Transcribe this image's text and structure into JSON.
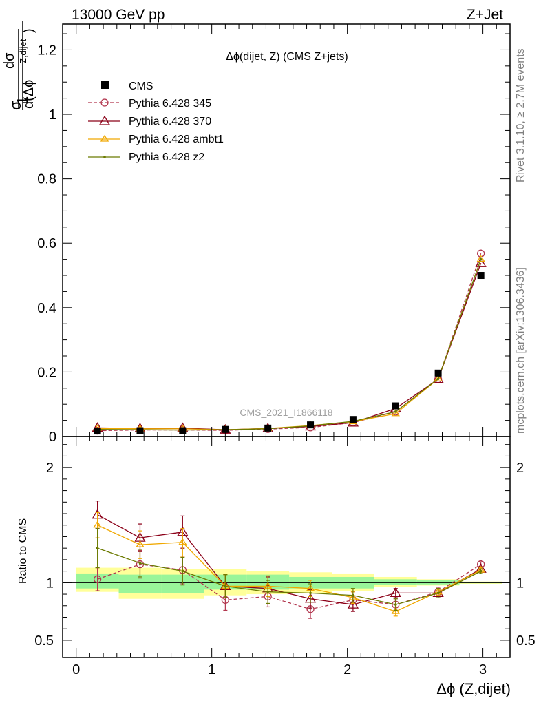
{
  "header": {
    "left": "13000 GeV pp",
    "right": "Z+Jet"
  },
  "side": {
    "rivet": "Rivet 3.1.10, ≥ 2.7M events",
    "mcplots": "mcplots.cern.ch [arXiv:1306.3436]"
  },
  "watermark": "CMS_2021_I1866118",
  "colors": {
    "cms": "#000000",
    "p345": "#b2364e",
    "p370": "#8b0018",
    "ambt1": "#f0a800",
    "z2": "#6b7a00",
    "band_inner": "#99f599",
    "band_outer": "#ffff99"
  },
  "chart_data": [
    {
      "type": "scatter",
      "title": "Δϕ(dijet, Z) (CMS Z+jets)",
      "xlabel": "Δϕ (Z,dijet)",
      "ylabel_main": "dσ",
      "ylabel_sub": "d(Δϕ",
      "ylabel_sup": "Z,dijet",
      "ylabel_close": ")",
      "ylabel_num": "1",
      "ylabel_den": "σ",
      "xlim": [
        -0.1,
        3.2
      ],
      "ylim": [
        0,
        1.28
      ],
      "yticks": [
        0,
        0.2,
        0.4,
        0.6,
        0.8,
        1,
        1.2
      ],
      "yticklabels": [
        "0",
        "0.2",
        "0.4",
        "0.6",
        "0.8",
        "1",
        "1.2"
      ],
      "legend_position": "top-left",
      "x": [
        0.157,
        0.471,
        0.785,
        1.1,
        1.414,
        1.728,
        2.042,
        2.356,
        2.67,
        2.985
      ],
      "series": [
        {
          "name": "CMS",
          "marker": "square",
          "color": "#000000",
          "values": [
            0.017,
            0.018,
            0.018,
            0.022,
            0.026,
            0.036,
            0.053,
            0.095,
            0.197,
            0.5
          ]
        },
        {
          "name": "Pythia 6.428 345",
          "marker": "circle",
          "color": "#b2364e",
          "dashed": true,
          "values": [
            0.018,
            0.02,
            0.02,
            0.019,
            0.023,
            0.028,
            0.043,
            0.077,
            0.178,
            0.568
          ]
        },
        {
          "name": "Pythia 6.428 370",
          "marker": "triangle",
          "color": "#8b0018",
          "values": [
            0.027,
            0.025,
            0.026,
            0.021,
            0.025,
            0.031,
            0.043,
            0.087,
            0.178,
            0.538
          ]
        },
        {
          "name": "Pythia 6.428 ambt1",
          "marker": "triangle-small",
          "color": "#f0a800",
          "values": [
            0.025,
            0.024,
            0.024,
            0.021,
            0.025,
            0.034,
            0.046,
            0.071,
            0.179,
            0.55
          ]
        },
        {
          "name": "Pythia 6.428 z2",
          "marker": "dot",
          "color": "#6b7a00",
          "values": [
            0.022,
            0.021,
            0.02,
            0.021,
            0.024,
            0.033,
            0.047,
            0.077,
            0.179,
            0.55
          ]
        }
      ]
    },
    {
      "type": "line",
      "ylabel": "Ratio to CMS",
      "ylim": [
        0.35,
        2.27
      ],
      "yticks": [
        0.5,
        1,
        2
      ],
      "yticklabels": [
        "0.5",
        "1",
        "2"
      ],
      "xticks": [
        0,
        1,
        2,
        3
      ],
      "xticklabels": [
        "0",
        "1",
        "2",
        "3"
      ],
      "x": [
        0.157,
        0.471,
        0.785,
        1.1,
        1.414,
        1.728,
        2.042,
        2.356,
        2.67,
        2.985
      ],
      "x_edges": [
        0.0,
        0.314,
        0.628,
        0.942,
        1.257,
        1.571,
        1.885,
        2.199,
        2.513,
        2.827,
        3.142
      ],
      "band_inner": [
        [
          0.95,
          1.08
        ],
        [
          0.91,
          1.07
        ],
        [
          0.91,
          1.07
        ],
        [
          0.94,
          1.07
        ],
        [
          0.94,
          1.07
        ],
        [
          0.95,
          1.05
        ],
        [
          0.95,
          1.05
        ],
        [
          0.98,
          1.03
        ],
        [
          0.985,
          1.02
        ],
        [
          0.995,
          1.005
        ]
      ],
      "band_outer": [
        [
          0.92,
          1.13
        ],
        [
          0.86,
          1.13
        ],
        [
          0.86,
          1.12
        ],
        [
          0.89,
          1.12
        ],
        [
          0.9,
          1.1
        ],
        [
          0.91,
          1.09
        ],
        [
          0.93,
          1.08
        ],
        [
          0.96,
          1.05
        ],
        [
          0.975,
          1.03
        ],
        [
          0.99,
          1.01
        ]
      ],
      "series": [
        {
          "name": "Pythia 6.428 345",
          "marker": "circle",
          "color": "#b2364e",
          "dashed": true,
          "values": [
            1.03,
            1.16,
            1.11,
            0.85,
            0.88,
            0.77,
            0.85,
            0.81,
            0.92,
            1.16
          ],
          "errors": [
            0.1,
            0.12,
            0.12,
            0.09,
            0.09,
            0.08,
            0.07,
            0.05,
            0.04,
            0.02
          ]
        },
        {
          "name": "Pythia 6.428 370",
          "marker": "triangle",
          "color": "#8b0018",
          "values": [
            1.59,
            1.39,
            1.44,
            0.97,
            0.95,
            0.86,
            0.81,
            0.91,
            0.91,
            1.12
          ],
          "errors": [
            0.12,
            0.12,
            0.14,
            0.1,
            0.1,
            0.08,
            0.06,
            0.04,
            0.04,
            0.02
          ]
        },
        {
          "name": "Pythia 6.428 ambt1",
          "marker": "triangle-small",
          "color": "#f0a800",
          "values": [
            1.5,
            1.33,
            1.35,
            0.97,
            0.97,
            0.95,
            0.87,
            0.75,
            0.92,
            1.11
          ],
          "errors": [
            0.11,
            0.12,
            0.12,
            0.1,
            0.09,
            0.07,
            0.05,
            0.04,
            0.03,
            0.02
          ]
        },
        {
          "name": "Pythia 6.428 z2",
          "marker": "dot",
          "color": "#6b7a00",
          "values": [
            1.3,
            1.17,
            1.1,
            0.97,
            0.92,
            0.91,
            0.89,
            0.81,
            0.91,
            1.1
          ],
          "errors": [
            0.17,
            0.12,
            0.12,
            0.1,
            0.1,
            0.08,
            0.06,
            0.05,
            0.04,
            0.02
          ]
        }
      ]
    }
  ]
}
